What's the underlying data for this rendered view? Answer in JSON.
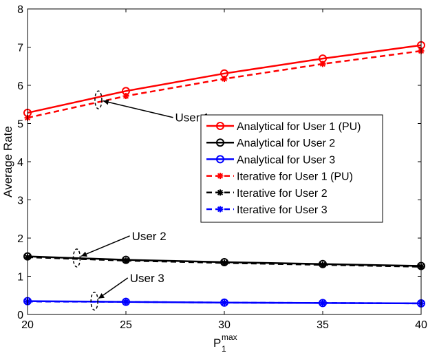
{
  "chart_data": {
    "type": "line",
    "xlabel": "P",
    "xlabel_sub": "1",
    "xlabel_sup": "max",
    "ylabel": "Average Rate",
    "xlim": [
      20,
      40
    ],
    "ylim": [
      0,
      8
    ],
    "xticks": [
      20,
      25,
      30,
      35,
      40
    ],
    "yticks": [
      0,
      1,
      2,
      3,
      4,
      5,
      6,
      7,
      8
    ],
    "x": [
      20,
      25,
      30,
      35,
      40
    ],
    "grid": false,
    "legend_position": "right",
    "series": [
      {
        "name": "Analytical for User 1 (PU)",
        "color": "#ff0000",
        "style": "solid",
        "marker": "circle",
        "values": [
          5.28,
          5.85,
          6.31,
          6.7,
          7.05
        ]
      },
      {
        "name": "Analytical for User 2",
        "color": "#000000",
        "style": "solid",
        "marker": "circle",
        "values": [
          1.52,
          1.43,
          1.37,
          1.32,
          1.27
        ]
      },
      {
        "name": "Analytical for User 3",
        "color": "#0000ff",
        "style": "solid",
        "marker": "circle",
        "values": [
          0.35,
          0.33,
          0.31,
          0.3,
          0.29
        ]
      },
      {
        "name": "Iterative for User 1 (PU)",
        "color": "#ff0000",
        "style": "dashed",
        "marker": "star",
        "values": [
          5.15,
          5.72,
          6.17,
          6.56,
          6.9
        ]
      },
      {
        "name": "Iterative for User 2",
        "color": "#000000",
        "style": "dashed",
        "marker": "star",
        "values": [
          1.5,
          1.41,
          1.35,
          1.3,
          1.25
        ]
      },
      {
        "name": "Iterative for User 3",
        "color": "#0000ff",
        "style": "dashed",
        "marker": "star",
        "values": [
          0.34,
          0.33,
          0.31,
          0.3,
          0.29
        ]
      }
    ],
    "annotations": [
      {
        "text": "User 1",
        "ellipse_at": [
          23.6,
          5.62
        ],
        "label_at": [
          27.5,
          5.05
        ]
      },
      {
        "text": "User 2",
        "ellipse_at": [
          22.5,
          1.48
        ],
        "label_at": [
          25.3,
          1.95
        ]
      },
      {
        "text": "User 3",
        "ellipse_at": [
          23.4,
          0.35
        ],
        "label_at": [
          25.2,
          0.85
        ]
      }
    ]
  }
}
